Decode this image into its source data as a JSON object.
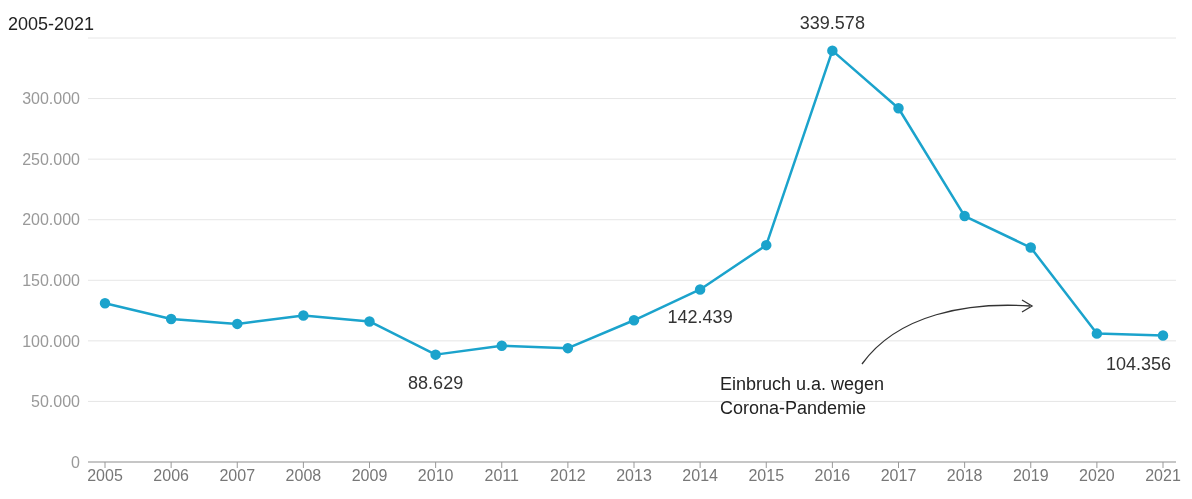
{
  "chart_data": {
    "type": "line",
    "title": "2005-2021",
    "categories": [
      "2005",
      "2006",
      "2007",
      "2008",
      "2009",
      "2010",
      "2011",
      "2012",
      "2013",
      "2014",
      "2015",
      "2016",
      "2017",
      "2018",
      "2019",
      "2020",
      "2021"
    ],
    "series": [
      {
        "color": "#1ba3cc",
        "values": [
          131000,
          118000,
          114000,
          121000,
          116000,
          88629,
          96000,
          94000,
          117000,
          142439,
          179000,
          339578,
          292000,
          203000,
          177000,
          106000,
          104356
        ],
        "value_labels": [
          null,
          null,
          null,
          null,
          null,
          "88.629",
          null,
          null,
          null,
          "142.439",
          null,
          "339.578",
          null,
          null,
          null,
          null,
          "104.356"
        ]
      }
    ],
    "ylim": [
      0,
      350000
    ],
    "yticks": [
      {
        "value": 0,
        "label": "0"
      },
      {
        "value": 50000,
        "label": "50.000"
      },
      {
        "value": 100000,
        "label": "100.000"
      },
      {
        "value": 150000,
        "label": "150.000"
      },
      {
        "value": 200000,
        "label": "200.000"
      },
      {
        "value": 250000,
        "label": "250.000"
      },
      {
        "value": 300000,
        "label": "300.000"
      }
    ],
    "grid": "y",
    "marker": "circle",
    "line_style": "solid",
    "annotations": [
      "Einbruch u.a. wegen Corona-Pandemie"
    ]
  }
}
